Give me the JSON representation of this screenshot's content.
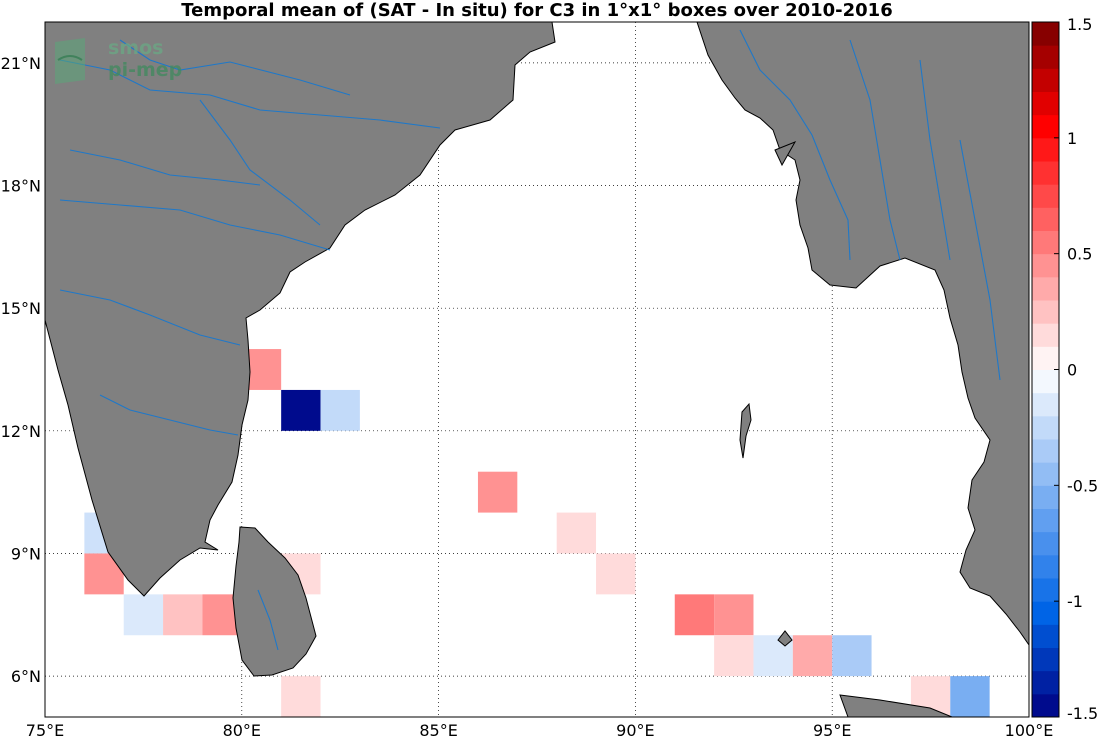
{
  "map": {
    "title": "Temporal mean of (SAT - In situ) for C3 in 1°x1° boxes over 2010-2016",
    "lon_range": [
      75,
      100
    ],
    "lat_range": [
      5,
      22
    ],
    "lon_ticks": [
      {
        "value": 75,
        "label": "75°E"
      },
      {
        "value": 80,
        "label": "80°E"
      },
      {
        "value": 85,
        "label": "85°E"
      },
      {
        "value": 90,
        "label": "90°E"
      },
      {
        "value": 95,
        "label": "95°E"
      },
      {
        "value": 100,
        "label": "100°E"
      }
    ],
    "lat_ticks": [
      {
        "value": 6,
        "label": "6°N"
      },
      {
        "value": 9,
        "label": "9°N"
      },
      {
        "value": 12,
        "label": "12°N"
      },
      {
        "value": 15,
        "label": "15°N"
      },
      {
        "value": 18,
        "label": "18°N"
      },
      {
        "value": 21,
        "label": "21°N"
      }
    ],
    "grid": "dotted",
    "colors": {
      "land": "#808080",
      "coast": "#000000",
      "rivers": "#1f78c8",
      "ocean": "#ffffff"
    },
    "logo": {
      "line1": "smos",
      "line2": "pi-mep"
    }
  },
  "colorbar": {
    "range": [
      -1.5,
      1.5
    ],
    "step": 0.1,
    "position": "right",
    "tick_labels": [
      {
        "value": 1.5,
        "label": "1.5"
      },
      {
        "value": 1,
        "label": "1"
      },
      {
        "value": 0.5,
        "label": "0.5"
      },
      {
        "value": 0,
        "label": "0"
      },
      {
        "value": -0.5,
        "label": "-0.5"
      },
      {
        "value": -1,
        "label": "-1"
      },
      {
        "value": -1.5,
        "label": "-1.5"
      }
    ]
  },
  "chart_data": {
    "type": "heatmap",
    "title": "Temporal mean of (SAT - In situ) for C3 in 1°x1° boxes over 2010-2016",
    "xlim": [
      75,
      100
    ],
    "ylim": [
      5,
      22
    ],
    "cells": [
      {
        "lon": 80,
        "lat": 13,
        "value": 0.45
      },
      {
        "lon": 81,
        "lat": 12,
        "value": -1.45
      },
      {
        "lon": 82,
        "lat": 12,
        "value": -0.25
      },
      {
        "lon": 86,
        "lat": 10,
        "value": 0.45
      },
      {
        "lon": 88,
        "lat": 9,
        "value": 0.15
      },
      {
        "lon": 76,
        "lat": 9,
        "value": -0.2
      },
      {
        "lon": 76,
        "lat": 8,
        "value": 0.45
      },
      {
        "lon": 81,
        "lat": 8,
        "value": 0.15
      },
      {
        "lon": 89,
        "lat": 8,
        "value": 0.15
      },
      {
        "lon": 77,
        "lat": 7,
        "value": -0.15
      },
      {
        "lon": 78,
        "lat": 7,
        "value": 0.25
      },
      {
        "lon": 79,
        "lat": 7,
        "value": 0.45
      },
      {
        "lon": 91,
        "lat": 7,
        "value": 0.55
      },
      {
        "lon": 92,
        "lat": 7,
        "value": 0.45
      },
      {
        "lon": 92,
        "lat": 6,
        "value": 0.15
      },
      {
        "lon": 93,
        "lat": 6,
        "value": -0.15
      },
      {
        "lon": 94,
        "lat": 6,
        "value": 0.35
      },
      {
        "lon": 95,
        "lat": 6,
        "value": -0.35
      },
      {
        "lon": 81,
        "lat": 5,
        "value": 0.15
      },
      {
        "lon": 97,
        "lat": 5,
        "value": 0.15
      },
      {
        "lon": 98,
        "lat": 5,
        "value": -0.55
      }
    ]
  }
}
